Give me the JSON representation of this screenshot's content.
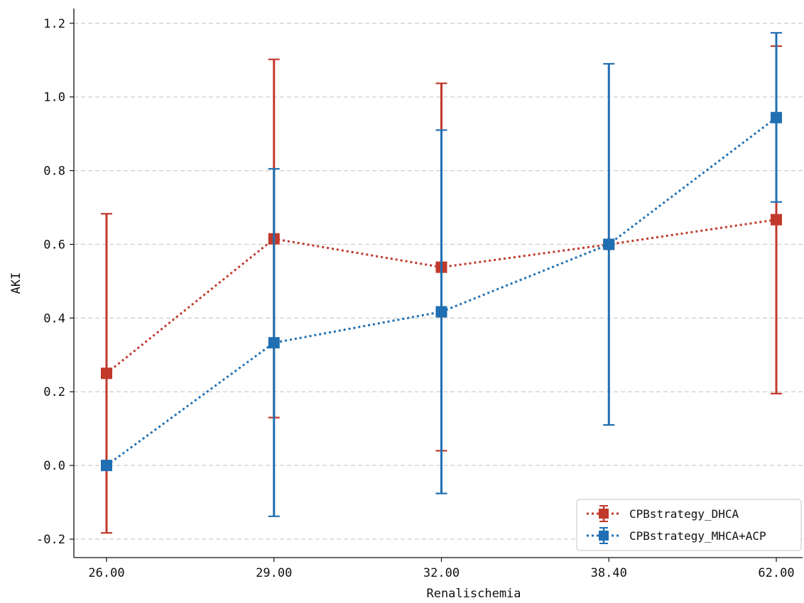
{
  "chart_data": {
    "type": "line",
    "title": "",
    "xlabel": "Renalischemia",
    "ylabel": "AKI",
    "categories": [
      "26.00",
      "29.00",
      "32.00",
      "38.40",
      "62.00"
    ],
    "yticks": [
      "-0.2",
      "0.0",
      "0.2",
      "0.4",
      "0.6",
      "0.8",
      "1.0",
      "1.2"
    ],
    "ylim": [
      -0.25,
      1.24
    ],
    "grid": "horizontal dashed",
    "legend_position": "lower-right",
    "series": [
      {
        "name": "CPBstrategy_DHCA",
        "color": "#c0392b",
        "line_style": "dotted",
        "marker": "square",
        "values": [
          0.25,
          0.615,
          0.538,
          0.6,
          0.667
        ],
        "error_low": [
          -0.183,
          0.13,
          0.04,
          0.6,
          0.195
        ],
        "error_high": [
          0.683,
          1.102,
          1.037,
          0.6,
          1.138
        ]
      },
      {
        "name": "CPBstrategy_MHCA+ACP",
        "color": "#1f6fb2",
        "line_style": "dotted",
        "marker": "square",
        "values": [
          0.0,
          0.333,
          0.417,
          0.6,
          0.944
        ],
        "error_low": [
          0.0,
          -0.138,
          -0.076,
          0.11,
          0.715
        ],
        "error_high": [
          0.0,
          0.805,
          0.91,
          1.09,
          1.174
        ]
      }
    ]
  }
}
